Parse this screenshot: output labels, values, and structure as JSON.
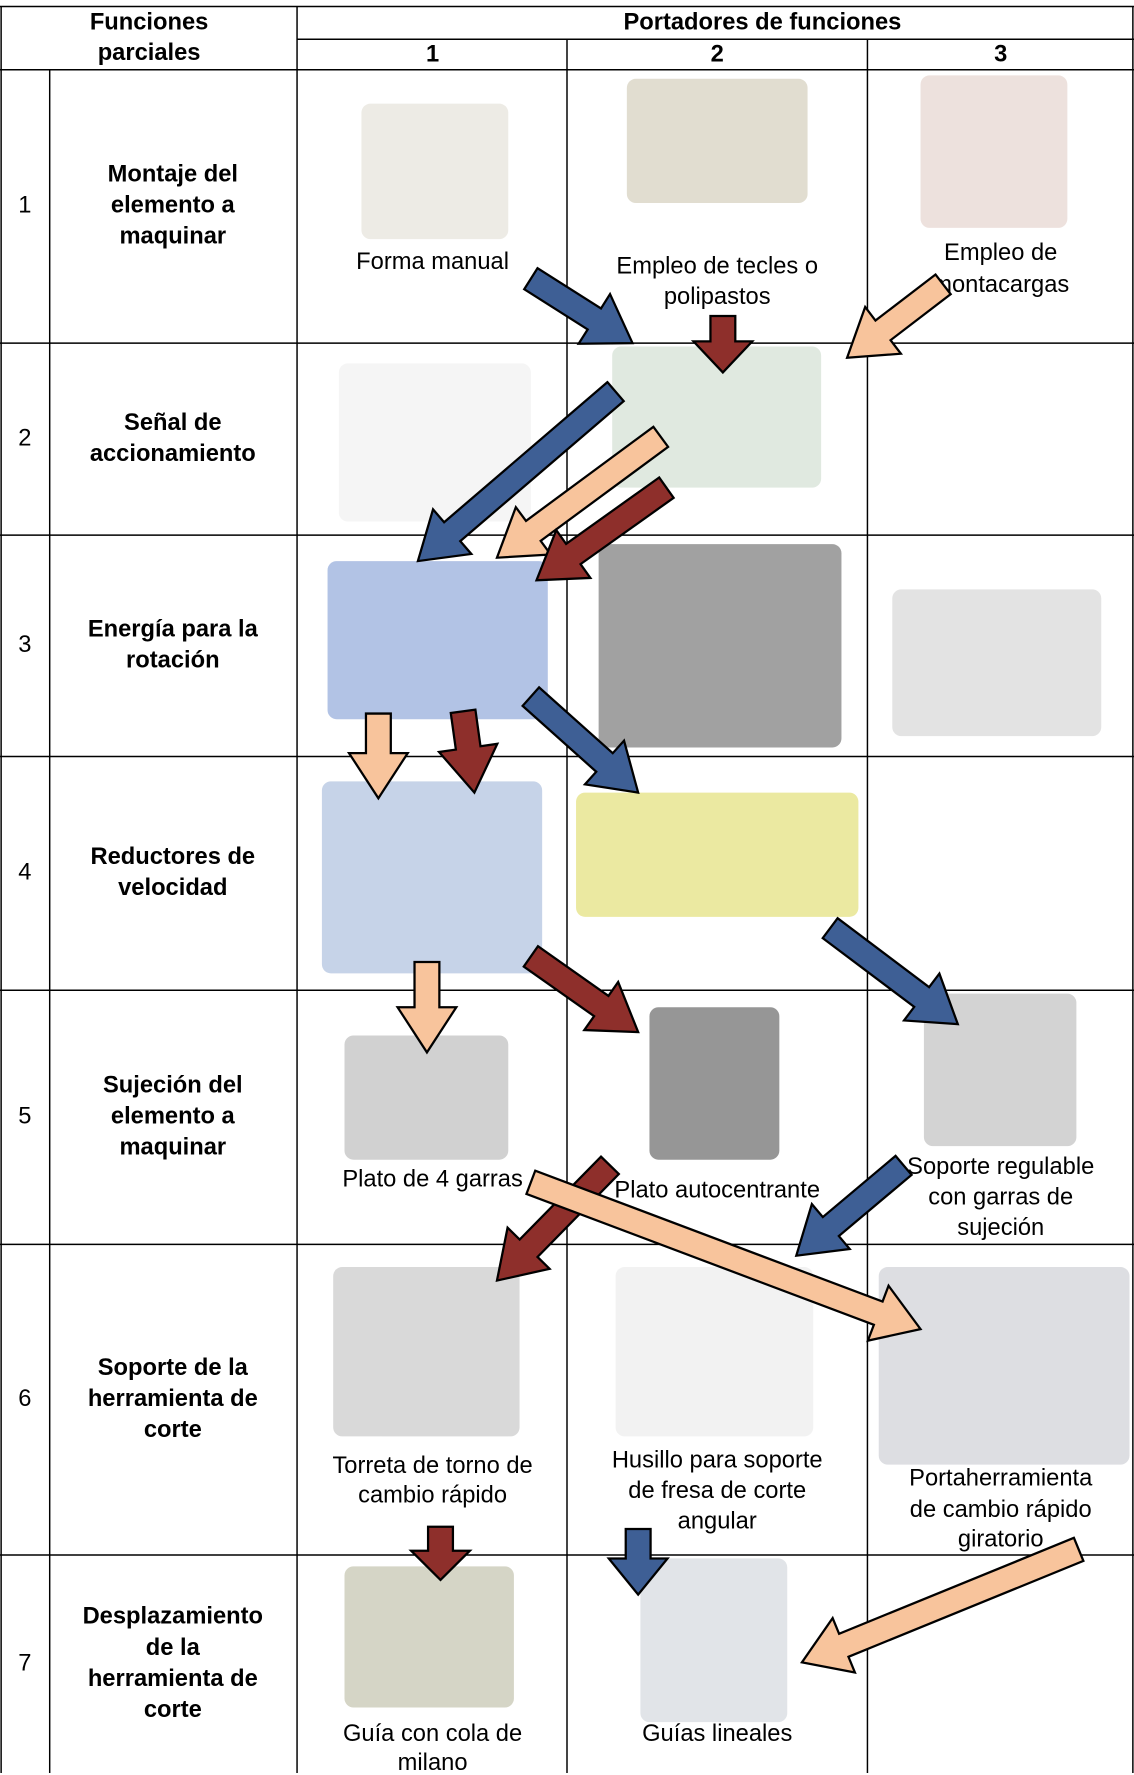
{
  "header": {
    "functions": [
      "Funciones",
      "parciales"
    ],
    "carriers": "Portadores de funciones",
    "columns": [
      "1",
      "2",
      "3"
    ]
  },
  "rows": [
    {
      "number": "1",
      "function": [
        "Montaje del",
        "elemento a",
        "maquinar"
      ],
      "cells": [
        [
          "Forma manual"
        ],
        [
          "Empleo de tecles o",
          "polipastos"
        ],
        [
          "Empleo de",
          "montacargas"
        ]
      ]
    },
    {
      "number": "2",
      "function": [
        "Señal de",
        "accionamiento"
      ],
      "cells": [
        [],
        [],
        []
      ]
    },
    {
      "number": "3",
      "function": [
        "Energía para la",
        "rotación"
      ],
      "cells": [
        [],
        [],
        []
      ]
    },
    {
      "number": "4",
      "function": [
        "Reductores de",
        "velocidad"
      ],
      "cells": [
        [],
        [],
        []
      ]
    },
    {
      "number": "5",
      "function": [
        "Sujeción del",
        "elemento a",
        "maquinar"
      ],
      "cells": [
        [
          "Plato de 4 garras"
        ],
        [
          "Plato autocentrante"
        ],
        [
          "Soporte regulable",
          "con garras de",
          "sujeción"
        ]
      ]
    },
    {
      "number": "6",
      "function": [
        "Soporte de la",
        "herramienta de",
        "corte"
      ],
      "cells": [
        [
          "Torreta de torno de",
          "cambio rápido"
        ],
        [
          "Husillo para soporte",
          "de fresa de corte",
          "angular"
        ],
        [
          "Portaherramienta",
          "de cambio rápido",
          "giratorio"
        ]
      ]
    },
    {
      "number": "7",
      "function": [
        "Desplazamiento",
        "de la",
        "herramienta de",
        "corte"
      ],
      "cells": [
        [
          "Guía con cola de",
          "milano"
        ],
        [
          "Guías lineales"
        ],
        []
      ]
    }
  ]
}
